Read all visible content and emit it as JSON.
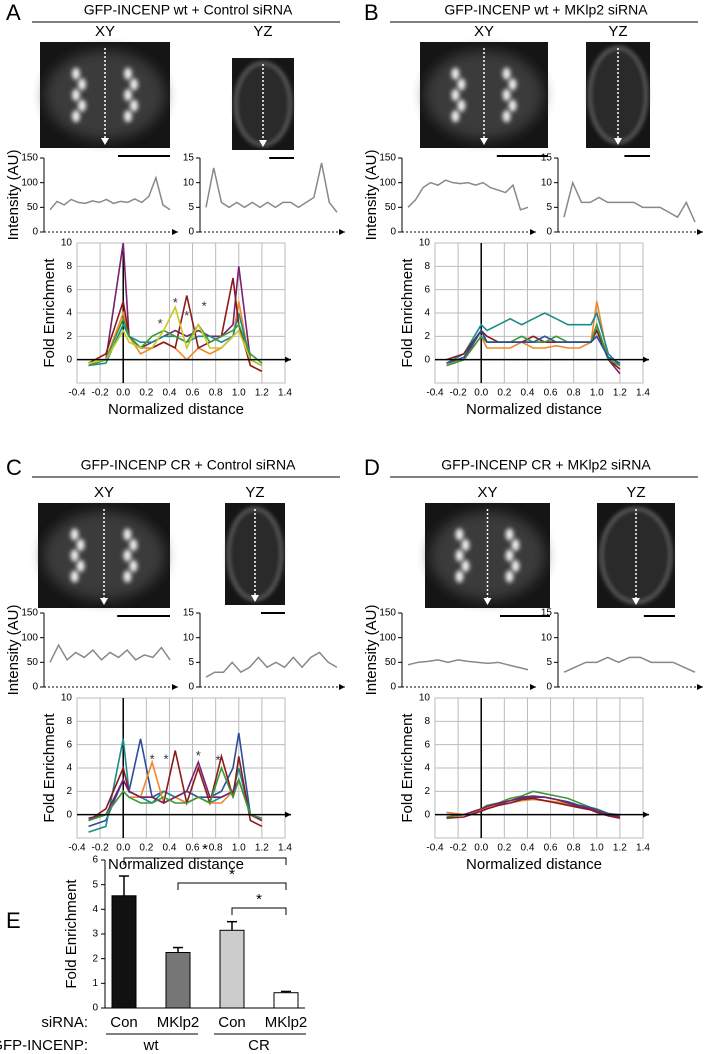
{
  "panels": [
    {
      "letter": "A",
      "title": "GFP-INCENP wt + Control siRNA",
      "views": [
        "XY",
        "YZ"
      ]
    },
    {
      "letter": "B",
      "title": "GFP-INCENP wt + MKlp2 siRNA",
      "views": [
        "XY",
        "YZ"
      ]
    },
    {
      "letter": "C",
      "title": "GFP-INCENP CR + Control siRNA",
      "views": [
        "XY",
        "YZ"
      ]
    },
    {
      "letter": "D",
      "title": "GFP-INCENP CR + MKlp2 siRNA",
      "views": [
        "XY",
        "YZ"
      ]
    },
    {
      "letter": "E"
    }
  ],
  "chart_data": [
    {
      "type": "intensity",
      "ylabel": "Intensity (AU)",
      "ylim": [
        0,
        150
      ],
      "yticks": [
        0,
        50,
        100,
        150
      ],
      "color": "#888888",
      "values": [
        45,
        62,
        55,
        66,
        60,
        58,
        63,
        60,
        66,
        58,
        62,
        60,
        67,
        60,
        72,
        110,
        55,
        45
      ]
    },
    {
      "type": "intensity",
      "ylim": [
        0,
        15
      ],
      "yticks": [
        0,
        5,
        10,
        15
      ],
      "color": "#888888",
      "values": [
        5,
        13,
        6,
        5,
        6,
        5,
        6,
        5,
        6,
        5,
        6,
        6,
        5,
        6,
        7,
        14,
        6,
        4
      ]
    },
    {
      "type": "fold",
      "ylabel": "Fold Enrichment",
      "xlabel": "Normalized distance",
      "grid": true,
      "xlim": [
        -0.4,
        1.4
      ],
      "ylim": [
        -2,
        10
      ],
      "xticks": [
        -0.4,
        -0.2,
        {
          "value": 0,
          "label": "0.0"
        },
        0.2,
        0.4,
        0.6,
        0.8,
        {
          "value": 1,
          "label": "1.0"
        },
        1.2,
        1.4
      ],
      "yticks": [
        0,
        2,
        4,
        6,
        8,
        10
      ],
      "x": [
        -0.3,
        -0.15,
        0,
        0.05,
        0.15,
        0.25,
        0.35,
        0.45,
        0.55,
        0.65,
        0.75,
        0.85,
        0.95,
        1.0,
        1.1,
        1.2
      ],
      "series": [
        {
          "color": "#7b1f6e",
          "values": [
            -0.5,
            0,
            10,
            2,
            1,
            1.5,
            2,
            2.5,
            2,
            2.5,
            2,
            2,
            3,
            8,
            0,
            -0.5
          ]
        },
        {
          "color": "#f0882a",
          "values": [
            -0.5,
            0,
            4,
            2,
            0.5,
            1,
            1.5,
            1,
            0,
            1,
            0.5,
            1,
            2,
            5,
            -0.5,
            -1
          ]
        },
        {
          "color": "#1a8c8c",
          "values": [
            -0.5,
            -0.3,
            3,
            2,
            1.5,
            1.5,
            2,
            2,
            1.5,
            2,
            2,
            1.5,
            2,
            4,
            0,
            -0.5
          ]
        },
        {
          "color": "#8b1a1a",
          "values": [
            -0.3,
            0.5,
            5,
            2,
            1,
            1,
            1.5,
            1,
            5.5,
            1,
            1.5,
            2,
            7,
            3,
            -0.5,
            -1
          ]
        },
        {
          "color": "#3a9a3a",
          "values": [
            -0.5,
            0,
            3.5,
            2,
            1,
            2,
            2.5,
            2,
            1.5,
            3,
            1.5,
            2,
            2.5,
            3,
            0.5,
            -0.3
          ]
        },
        {
          "color": "#c8c820",
          "values": [
            -0.3,
            0,
            2.5,
            1.5,
            1,
            1,
            2.5,
            4.5,
            1,
            3,
            1,
            1,
            2,
            2.5,
            0,
            -0.5
          ]
        }
      ],
      "annotations": [
        {
          "text": "*",
          "x": 0.32,
          "y": 3
        },
        {
          "text": "*",
          "x": 0.45,
          "y": 4.8
        },
        {
          "text": "*",
          "x": 0.55,
          "y": 3.7
        },
        {
          "text": "*",
          "x": 0.7,
          "y": 4.5
        }
      ]
    },
    {
      "type": "intensity",
      "ylabel": "Intensity (AU)",
      "ylim": [
        0,
        150
      ],
      "yticks": [
        0,
        50,
        100,
        150
      ],
      "color": "#888888",
      "values": [
        50,
        65,
        90,
        100,
        95,
        105,
        100,
        98,
        100,
        95,
        100,
        90,
        85,
        80,
        95,
        45,
        50
      ]
    },
    {
      "type": "intensity",
      "ylim": [
        0,
        15
      ],
      "yticks": [
        0,
        5,
        10,
        15
      ],
      "color": "#888888",
      "values": [
        3,
        10,
        6,
        6,
        7,
        6,
        6,
        6,
        6,
        5,
        5,
        5,
        4,
        3,
        6,
        2
      ]
    },
    {
      "type": "fold",
      "ylabel": "Fold Enrichment",
      "xlabel": "Normalized distance",
      "grid": true,
      "xlim": [
        -0.4,
        1.4
      ],
      "ylim": [
        -2,
        10
      ],
      "xticks": [
        -0.4,
        -0.2,
        {
          "value": 0,
          "label": "0.0"
        },
        0.2,
        0.4,
        0.6,
        0.8,
        {
          "value": 1,
          "label": "1.0"
        },
        1.2,
        1.4
      ],
      "yticks": [
        0,
        2,
        4,
        6,
        8,
        10
      ],
      "x": [
        -0.3,
        -0.15,
        0,
        0.05,
        0.15,
        0.25,
        0.35,
        0.45,
        0.55,
        0.65,
        0.75,
        0.85,
        0.95,
        1.0,
        1.1,
        1.2
      ],
      "series": [
        {
          "color": "#7b1f6e",
          "values": [
            -0.5,
            0,
            2.5,
            1.5,
            1.5,
            1.5,
            1.5,
            1.5,
            1.5,
            1.5,
            1.5,
            1.5,
            1.5,
            3,
            0,
            -1.2
          ]
        },
        {
          "color": "#f0882a",
          "values": [
            -0.3,
            0,
            2,
            1,
            1,
            1,
            1.5,
            1,
            1,
            1.2,
            1,
            1,
            1.5,
            5,
            0,
            -0.5
          ]
        },
        {
          "color": "#1a8c8c",
          "values": [
            -0.3,
            0.5,
            3,
            2.5,
            3,
            3.5,
            3,
            3.5,
            4,
            3.5,
            3,
            3,
            3,
            4,
            0.5,
            -0.5
          ]
        },
        {
          "color": "#8b1a1a",
          "values": [
            0,
            0.5,
            2.5,
            2,
            1.5,
            1.5,
            1.5,
            2,
            1.5,
            1.5,
            1.5,
            1.5,
            1.5,
            2.5,
            0,
            -0.8
          ]
        },
        {
          "color": "#3a9a3a",
          "values": [
            -0.5,
            0,
            2,
            1.5,
            1.5,
            1.5,
            2,
            1.5,
            1.5,
            2,
            1.5,
            1.5,
            1.5,
            3,
            0,
            -0.5
          ]
        },
        {
          "color": "#2a4f9a",
          "values": [
            -0.3,
            0.2,
            2.5,
            1.5,
            1.5,
            1.5,
            1.5,
            1.5,
            2,
            1.5,
            1.5,
            1.5,
            1.5,
            2,
            0.2,
            -0.3
          ]
        }
      ]
    },
    {
      "type": "intensity",
      "ylabel": "Intensity (AU)",
      "ylim": [
        0,
        150
      ],
      "yticks": [
        0,
        50,
        100,
        150
      ],
      "color": "#888888",
      "values": [
        50,
        85,
        55,
        70,
        60,
        75,
        55,
        70,
        60,
        75,
        55,
        65,
        60,
        80,
        55
      ]
    },
    {
      "type": "intensity",
      "ylim": [
        0,
        15
      ],
      "yticks": [
        0,
        5,
        10,
        15
      ],
      "color": "#888888",
      "values": [
        2,
        3,
        3,
        5,
        3,
        4,
        6,
        4,
        5,
        4,
        6,
        4,
        6,
        7,
        5,
        4
      ]
    },
    {
      "type": "fold",
      "ylabel": "Fold Enrichment",
      "xlabel": "Normalized distance",
      "grid": true,
      "xlim": [
        -0.4,
        1.4
      ],
      "ylim": [
        -2,
        10
      ],
      "xticks": [
        -0.4,
        -0.2,
        {
          "value": 0,
          "label": "0.0"
        },
        0.2,
        0.4,
        0.6,
        0.8,
        {
          "value": 1,
          "label": "1.0"
        },
        1.2,
        1.4
      ],
      "yticks": [
        0,
        2,
        4,
        6,
        8,
        10
      ],
      "x": [
        -0.3,
        -0.15,
        0,
        0.05,
        0.15,
        0.25,
        0.35,
        0.45,
        0.55,
        0.65,
        0.75,
        0.85,
        0.95,
        1.0,
        1.1,
        1.2
      ],
      "series": [
        {
          "color": "#2a4f9a",
          "values": [
            -1,
            -0.5,
            3,
            2,
            6.5,
            1.5,
            2,
            1.5,
            2,
            1.5,
            1.5,
            2,
            4,
            7,
            0,
            -0.5
          ]
        },
        {
          "color": "#1a8c8c",
          "values": [
            -1.5,
            -1,
            6.5,
            2,
            1.5,
            1,
            2,
            1.5,
            1,
            1.5,
            1,
            1.5,
            2,
            4,
            0,
            -0.5
          ]
        },
        {
          "color": "#f0882a",
          "values": [
            -0.5,
            0,
            2,
            1.5,
            1.5,
            4.5,
            1,
            1.5,
            1,
            1.5,
            1,
            1,
            2,
            3,
            0,
            -0.5
          ]
        },
        {
          "color": "#8b1a1a",
          "values": [
            -0.5,
            0.5,
            4,
            2,
            1.5,
            1.5,
            1,
            5.5,
            1,
            4,
            1,
            5,
            1.5,
            5,
            -0.5,
            -1
          ]
        },
        {
          "color": "#7b1f6e",
          "values": [
            -0.3,
            0,
            3,
            2,
            1.5,
            1.5,
            1,
            1.5,
            2,
            4.5,
            1.5,
            1.5,
            2,
            3,
            0,
            -0.5
          ]
        },
        {
          "color": "#3a9a3a",
          "values": [
            -0.5,
            0,
            2,
            1.5,
            1,
            1,
            1.5,
            1,
            1,
            1.5,
            1,
            4,
            1.5,
            3,
            0,
            -0.3
          ]
        }
      ],
      "annotations": [
        {
          "text": "*",
          "x": 0.25,
          "y": 4.7
        },
        {
          "text": "*",
          "x": 0.37,
          "y": 4.7
        },
        {
          "text": "*",
          "x": 0.65,
          "y": 5
        },
        {
          "text": "*",
          "x": 0.82,
          "y": 4.6
        }
      ]
    },
    {
      "type": "intensity",
      "ylabel": "Intensity (AU)",
      "ylim": [
        0,
        150
      ],
      "yticks": [
        0,
        50,
        100,
        150
      ],
      "color": "#888888",
      "values": [
        45,
        50,
        52,
        55,
        50,
        55,
        52,
        50,
        48,
        50,
        45,
        40,
        35
      ]
    },
    {
      "type": "intensity",
      "ylim": [
        0,
        15
      ],
      "yticks": [
        0,
        5,
        10,
        15
      ],
      "color": "#888888",
      "values": [
        3,
        4,
        5,
        5,
        6,
        5,
        6,
        6,
        5,
        5,
        5,
        4,
        3
      ]
    },
    {
      "type": "fold",
      "ylabel": "Fold Enrichment",
      "xlabel": "Normalized distance",
      "grid": true,
      "xlim": [
        -0.4,
        1.4
      ],
      "ylim": [
        -2,
        10
      ],
      "xticks": [
        -0.4,
        -0.2,
        {
          "value": 0,
          "label": "0.0"
        },
        0.2,
        0.4,
        0.6,
        0.8,
        {
          "value": 1,
          "label": "1.0"
        },
        1.2,
        1.4
      ],
      "yticks": [
        0,
        2,
        4,
        6,
        8,
        10
      ],
      "x": [
        -0.3,
        -0.15,
        0,
        0.05,
        0.15,
        0.25,
        0.35,
        0.45,
        0.55,
        0.65,
        0.75,
        0.85,
        0.95,
        1.0,
        1.1,
        1.2
      ],
      "series": [
        {
          "color": "#3a9a3a",
          "values": [
            -0.2,
            0,
            0.5,
            0.8,
            1,
            1.4,
            1.6,
            2,
            1.8,
            1.6,
            1.4,
            1,
            0.6,
            0.5,
            0.1,
            0
          ]
        },
        {
          "color": "#2a4f9a",
          "values": [
            0,
            0,
            0.3,
            0.5,
            0.9,
            1.2,
            1.4,
            1.5,
            1.5,
            1.3,
            1.1,
            0.8,
            0.6,
            0.4,
            0.1,
            -0.1
          ]
        },
        {
          "color": "#f0882a",
          "values": [
            0.2,
            0,
            0.4,
            0.6,
            0.8,
            1,
            1.2,
            1.3,
            1.2,
            1.1,
            0.9,
            0.7,
            0.5,
            0.3,
            0,
            -0.2
          ]
        },
        {
          "color": "#8b1a1a",
          "values": [
            -0.3,
            -0.2,
            0.3,
            0.5,
            0.8,
            1,
            1.3,
            1.4,
            1.2,
            1,
            0.8,
            0.6,
            0.4,
            0.2,
            -0.1,
            -0.3
          ]
        },
        {
          "color": "#7b1f6e",
          "values": [
            0,
            0,
            0.5,
            0.7,
            1,
            1.2,
            1.5,
            1.6,
            1.5,
            1.3,
            1,
            0.7,
            0.5,
            0.3,
            0,
            -0.2
          ]
        }
      ]
    },
    {
      "type": "bar",
      "ylabel": "Fold Enrichment",
      "ylim": [
        0,
        6
      ],
      "yticks": [
        0,
        1,
        2,
        3,
        4,
        5,
        6
      ],
      "category_title": "siRNA:",
      "categories": [
        "Con",
        "MKlp2",
        "Con",
        "MKlp2"
      ],
      "group_title": "GFP-INCENP:",
      "groups": [
        "wt",
        "CR"
      ],
      "values": [
        4.55,
        2.25,
        3.15,
        0.62
      ],
      "errors": [
        0.8,
        0.2,
        0.35,
        0.05
      ],
      "colors": [
        "#111111",
        "#777777",
        "#cccccc",
        "#ffffff"
      ],
      "comparisons": [
        {
          "bars": [
            0,
            3
          ],
          "label": "*"
        },
        {
          "bars": [
            1,
            3
          ],
          "label": "*"
        },
        {
          "bars": [
            2,
            3
          ],
          "label": "*"
        }
      ]
    }
  ]
}
